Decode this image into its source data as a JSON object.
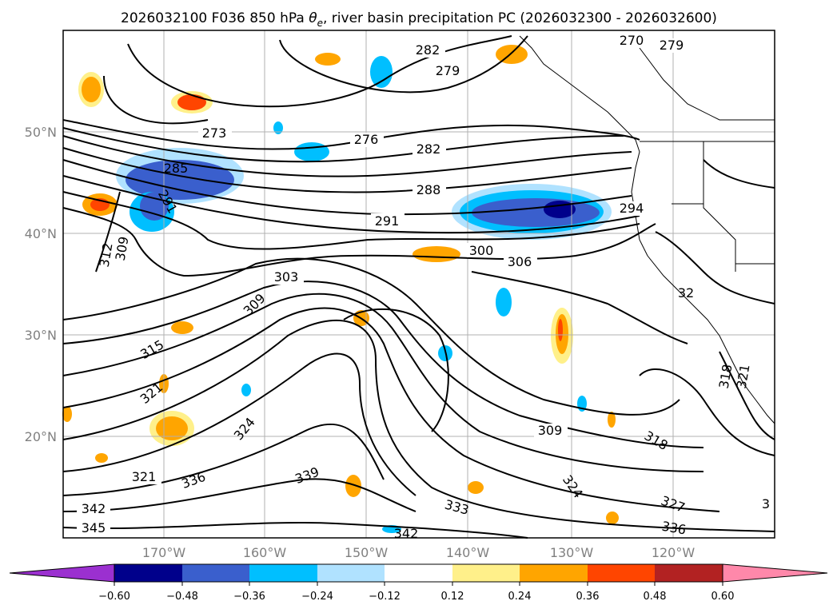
{
  "title": {
    "prefix": "2026032100 F036 850 hPa ",
    "theta": "θ",
    "sub": "e",
    "suffix": ", river basin precipitation PC (2026032300 - 2026032600)"
  },
  "map": {
    "lat_labels": [
      "50°N",
      "40°N",
      "30°N",
      "20°N"
    ],
    "lon_labels": [
      "170°W",
      "160°W",
      "150°W",
      "140°W",
      "130°W",
      "120°W"
    ],
    "contour_labels": [
      "282",
      "279",
      "276",
      "273",
      "270",
      "279",
      "282",
      "288",
      "285",
      "291",
      "291",
      "294",
      "300",
      "306",
      "303",
      "309",
      "312",
      "309",
      "315",
      "321",
      "324",
      "321",
      "336",
      "339",
      "342",
      "345",
      "333",
      "324",
      "309",
      "318",
      "318",
      "321",
      "327",
      "336",
      "342",
      "3",
      "32"
    ]
  },
  "colorbar": {
    "ticks": [
      "−0.60",
      "−0.48",
      "−0.36",
      "−0.24",
      "−0.12",
      "0.12",
      "0.24",
      "0.36",
      "0.48",
      "0.60"
    ],
    "colors": [
      "#9b30d0",
      "#00008b",
      "#3a5fcd",
      "#00bfff",
      "#b0e2ff",
      "#ffffff",
      "#fff08a",
      "#ffa500",
      "#ff4500",
      "#b22222",
      "#ff88aa"
    ]
  }
}
